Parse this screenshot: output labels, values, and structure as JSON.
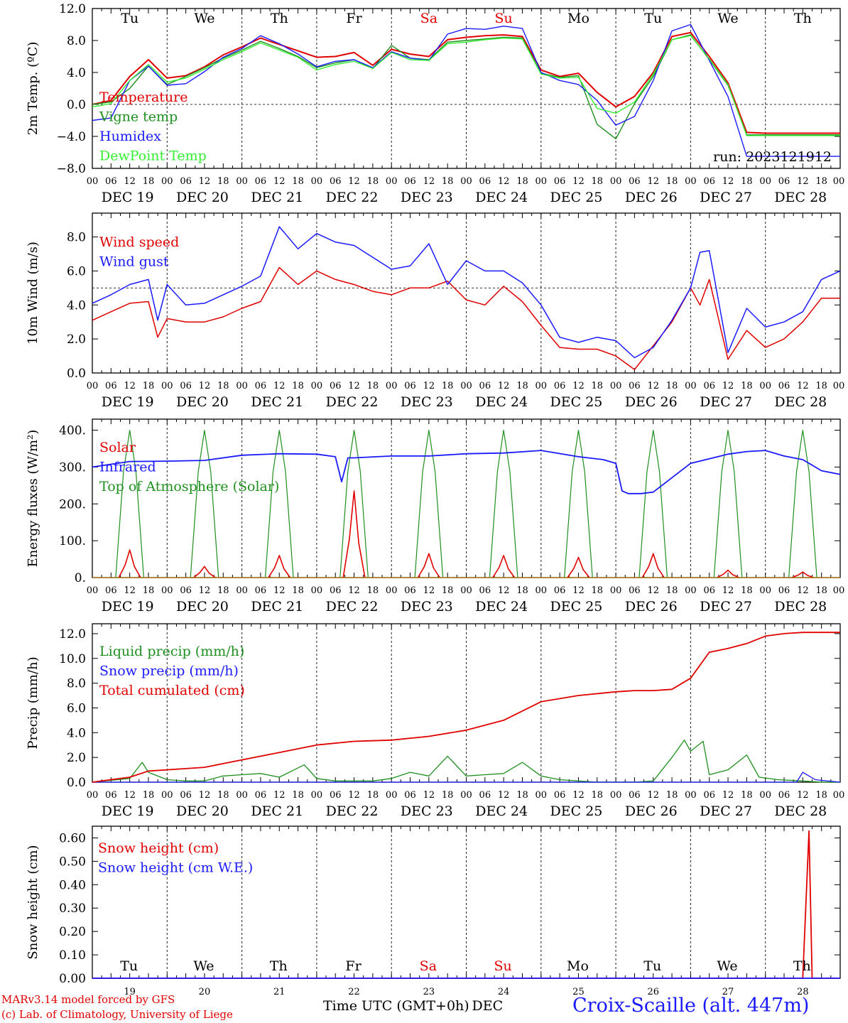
{
  "run_label": "run: 2023121912",
  "x_axis_label": "Time UTC (GMT+0h)",
  "x_axis_unit": "DEC",
  "station": "Croix-Scaille (alt. 447m)",
  "credits": [
    "MARv3.14 model forced by GFS",
    "(c) Lab. of Climatology, University of Liege"
  ],
  "hour_ticks": [
    "00",
    "06",
    "12",
    "18"
  ],
  "end_tick": "00",
  "date_labels": [
    "DEC 19",
    "DEC 20",
    "DEC 21",
    "DEC 22",
    "DEC 23",
    "DEC 24",
    "DEC 25",
    "DEC 26",
    "DEC 27",
    "DEC 28"
  ],
  "day_numbers": [
    "19",
    "20",
    "21",
    "22",
    "23",
    "24",
    "25",
    "26",
    "27",
    "28"
  ],
  "weekdays": [
    {
      "label": "Tu",
      "color": "#000000"
    },
    {
      "label": "We",
      "color": "#000000"
    },
    {
      "label": "Th",
      "color": "#000000"
    },
    {
      "label": "Fr",
      "color": "#000000"
    },
    {
      "label": "Sa",
      "color": "#e00000"
    },
    {
      "label": "Su",
      "color": "#e00000"
    },
    {
      "label": "Mo",
      "color": "#000000"
    },
    {
      "label": "Tu",
      "color": "#000000"
    },
    {
      "label": "We",
      "color": "#000000"
    },
    {
      "label": "Th",
      "color": "#000000"
    }
  ],
  "chart_data": [
    {
      "type": "line",
      "ylabel": "2m Temp. (ºC)",
      "yticks": [
        "12.0",
        "8.0",
        "4.0",
        "0.0",
        "−4.0",
        "−8.0"
      ],
      "ylim": [
        -8,
        12
      ],
      "x_unit": "hours since DEC 19 00 UTC",
      "reference_line": 0,
      "series": [
        {
          "name": "Temperature",
          "color": "#e00000",
          "x": [
            0,
            6,
            12,
            18,
            24,
            30,
            36,
            42,
            48,
            54,
            60,
            66,
            72,
            78,
            84,
            90,
            96,
            102,
            108,
            114,
            120,
            126,
            132,
            138,
            144,
            150,
            156,
            162,
            168,
            174,
            180,
            186,
            192,
            198,
            204,
            210,
            216,
            222,
            228,
            234,
            240
          ],
          "values": [
            0.0,
            0.5,
            3.5,
            5.6,
            3.3,
            3.6,
            4.7,
            6.2,
            7.2,
            8.3,
            7.5,
            6.7,
            5.9,
            6.0,
            6.5,
            4.9,
            6.9,
            6.3,
            6.0,
            8.1,
            8.4,
            8.6,
            8.7,
            8.5,
            4.3,
            3.5,
            3.9,
            1.5,
            -0.3,
            1.0,
            4.0,
            8.5,
            9.0,
            6.0,
            2.7,
            -3.5,
            -3.6,
            -3.6,
            -3.6,
            -3.6,
            -3.6
          ]
        },
        {
          "name": "Vigne temp",
          "color": "#1f8f1f",
          "x": [
            0,
            6,
            12,
            18,
            24,
            30,
            36,
            42,
            48,
            54,
            60,
            66,
            72,
            78,
            84,
            90,
            96,
            102,
            108,
            114,
            120,
            126,
            132,
            138,
            144,
            150,
            156,
            162,
            168,
            174,
            180,
            186,
            192,
            198,
            204,
            210,
            216,
            222,
            228,
            234,
            240
          ],
          "values": [
            0.0,
            0.3,
            2.0,
            4.8,
            2.5,
            3.5,
            4.6,
            5.8,
            6.8,
            7.9,
            7.0,
            6.0,
            4.6,
            5.2,
            5.6,
            4.5,
            7.4,
            5.8,
            5.6,
            7.8,
            8.0,
            8.2,
            8.4,
            8.3,
            3.9,
            3.4,
            3.6,
            -2.5,
            -4.3,
            0.1,
            3.5,
            8.1,
            8.7,
            5.6,
            2.4,
            -3.8,
            -3.8,
            -3.8,
            -3.8,
            -3.8,
            -3.8
          ]
        },
        {
          "name": "Humidex",
          "color": "#1a1aff",
          "x": [
            0,
            6,
            12,
            18,
            24,
            30,
            36,
            42,
            48,
            54,
            60,
            66,
            72,
            78,
            84,
            90,
            96,
            102,
            108,
            114,
            120,
            126,
            132,
            138,
            144,
            150,
            156,
            162,
            168,
            174,
            180,
            186,
            192,
            198,
            204,
            210,
            216,
            222,
            228,
            234,
            240
          ],
          "values": [
            -2.0,
            -1.7,
            3.0,
            4.8,
            2.4,
            2.6,
            4.1,
            5.9,
            7.0,
            8.6,
            7.6,
            6.3,
            4.7,
            5.4,
            5.6,
            4.6,
            6.6,
            5.8,
            5.5,
            8.8,
            9.5,
            9.4,
            9.8,
            9.5,
            4.0,
            3.0,
            2.5,
            0.5,
            -2.6,
            -1.5,
            3.0,
            9.2,
            10.0,
            5.5,
            1.0,
            -6.5,
            -6.5,
            -6.5,
            -6.5,
            -6.5,
            -6.5
          ]
        },
        {
          "name": "DewPoint Temp",
          "color": "#33ee33",
          "x": [
            0,
            6,
            12,
            18,
            24,
            30,
            36,
            42,
            48,
            54,
            60,
            66,
            72,
            78,
            84,
            90,
            96,
            102,
            108,
            114,
            120,
            126,
            132,
            138,
            144,
            150,
            156,
            162,
            168,
            174,
            180,
            186,
            192,
            198,
            204,
            210,
            216,
            222,
            228,
            234,
            240
          ],
          "values": [
            -0.3,
            0.1,
            3.0,
            5.0,
            2.8,
            3.3,
            4.4,
            5.6,
            6.6,
            7.7,
            6.8,
            5.9,
            4.3,
            5.0,
            5.4,
            4.5,
            6.5,
            5.6,
            5.5,
            7.6,
            7.8,
            8.1,
            8.3,
            8.2,
            3.8,
            3.3,
            3.4,
            -0.5,
            -1.1,
            0.3,
            3.8,
            8.1,
            8.6,
            5.7,
            2.5,
            -3.9,
            -3.9,
            -3.9,
            -3.9,
            -3.9,
            -3.9
          ]
        }
      ]
    },
    {
      "type": "line",
      "ylabel": "10m Wind (m/s)",
      "yticks": [
        "8.0",
        "6.0",
        "4.0",
        "2.0",
        "0.0"
      ],
      "ylim": [
        0,
        9.4
      ],
      "x_unit": "hours since DEC 19 00 UTC",
      "reference_line": 5,
      "series": [
        {
          "name": "Wind speed",
          "color": "#e00000",
          "x": [
            0,
            6,
            12,
            18,
            21,
            24,
            30,
            36,
            42,
            48,
            54,
            60,
            66,
            72,
            78,
            84,
            90,
            96,
            102,
            108,
            114,
            120,
            126,
            132,
            138,
            144,
            150,
            156,
            162,
            168,
            174,
            180,
            186,
            192,
            195,
            198,
            204,
            210,
            216,
            222,
            228,
            234,
            240
          ],
          "values": [
            3.1,
            3.6,
            4.1,
            4.2,
            2.1,
            3.2,
            3.0,
            3.0,
            3.3,
            3.8,
            4.2,
            6.2,
            5.2,
            6.0,
            5.5,
            5.2,
            4.8,
            4.6,
            5.0,
            5.0,
            5.4,
            4.3,
            4.0,
            5.1,
            4.2,
            2.8,
            1.5,
            1.4,
            1.4,
            1.0,
            0.2,
            1.6,
            3.0,
            5.0,
            4.0,
            5.5,
            0.8,
            2.5,
            1.5,
            2.0,
            3.0,
            4.4,
            4.4
          ]
        },
        {
          "name": "Wind gust",
          "color": "#1a1aff",
          "x": [
            0,
            6,
            12,
            18,
            21,
            24,
            30,
            36,
            42,
            48,
            54,
            60,
            66,
            72,
            78,
            84,
            90,
            96,
            102,
            108,
            114,
            120,
            126,
            132,
            138,
            144,
            150,
            156,
            162,
            168,
            174,
            180,
            186,
            192,
            195,
            198,
            204,
            210,
            216,
            222,
            228,
            234,
            240
          ],
          "values": [
            4.1,
            4.6,
            5.2,
            5.5,
            3.1,
            5.2,
            4.0,
            4.1,
            4.6,
            5.1,
            5.7,
            8.6,
            7.3,
            8.2,
            7.7,
            7.5,
            6.8,
            6.1,
            6.3,
            7.6,
            5.2,
            6.6,
            6.0,
            6.0,
            5.3,
            4.0,
            2.1,
            1.8,
            2.1,
            1.9,
            0.9,
            1.5,
            3.1,
            5.0,
            7.1,
            7.2,
            1.2,
            3.8,
            2.7,
            3.0,
            3.6,
            5.5,
            6.0
          ]
        }
      ]
    },
    {
      "type": "line",
      "ylabel": "Energy fluxes (W/m²)",
      "yticks": [
        "400.",
        "300.",
        "200.",
        "100.",
        "0."
      ],
      "ylim": [
        0,
        430
      ],
      "x_unit": "hours since DEC 19 00 UTC",
      "series": [
        {
          "name": "Solar",
          "color": "#e00000",
          "daily_peaks": [
            75,
            30,
            60,
            235,
            65,
            60,
            55,
            65,
            20,
            15
          ]
        },
        {
          "name": "Infrared",
          "color": "#1a1aff",
          "x": [
            0,
            12,
            24,
            36,
            48,
            60,
            72,
            78,
            80,
            82,
            84,
            96,
            108,
            120,
            132,
            144,
            156,
            164,
            168,
            170,
            172,
            176,
            180,
            192,
            204,
            210,
            216,
            222,
            228,
            234,
            240
          ],
          "values": [
            300,
            315,
            316,
            318,
            332,
            336,
            335,
            328,
            260,
            325,
            325,
            330,
            330,
            336,
            338,
            345,
            328,
            320,
            310,
            235,
            228,
            228,
            232,
            310,
            335,
            342,
            345,
            330,
            320,
            290,
            280
          ]
        },
        {
          "name": "Top of Atmosphere (Solar)",
          "color": "#1f8f1f",
          "daily_peak": 400
        }
      ]
    },
    {
      "type": "line",
      "ylabel": "Precip (mm/h)",
      "yticks": [
        "12.0",
        "10.0",
        "8.0",
        "6.0",
        "4.0",
        "2.0",
        "0.0"
      ],
      "ylim": [
        0,
        12.8
      ],
      "x_unit": "hours since DEC 19 00 UTC",
      "series": [
        {
          "name": "Liquid precip (mm/h)",
          "color": "#1f8f1f",
          "x": [
            0,
            12,
            16,
            18,
            24,
            30,
            36,
            42,
            48,
            54,
            60,
            64,
            68,
            72,
            78,
            84,
            90,
            96,
            102,
            108,
            114,
            120,
            126,
            132,
            138,
            144,
            150,
            156,
            162,
            168,
            174,
            180,
            186,
            190,
            192,
            196,
            198,
            204,
            210,
            214,
            220,
            228,
            234,
            240
          ],
          "values": [
            0.0,
            0.3,
            1.6,
            0.8,
            0.2,
            0.1,
            0.1,
            0.5,
            0.6,
            0.7,
            0.4,
            0.9,
            1.4,
            0.3,
            0.1,
            0.1,
            0.1,
            0.3,
            0.8,
            0.5,
            2.1,
            0.5,
            0.6,
            0.7,
            1.6,
            0.5,
            0.2,
            0.1,
            0.0,
            0.0,
            0.0,
            0.1,
            2.0,
            3.4,
            2.5,
            3.3,
            0.6,
            1.0,
            2.2,
            0.4,
            0.2,
            0.1,
            0.0,
            0.0
          ]
        },
        {
          "name": "Snow precip (mm/h)",
          "color": "#1a1aff",
          "x": [
            0,
            200,
            226,
            228,
            232,
            240
          ],
          "values": [
            0.0,
            0.0,
            0.0,
            0.8,
            0.2,
            0.0
          ]
        },
        {
          "name": "Total cumulated (cm)",
          "color": "#e00000",
          "x": [
            0,
            12,
            18,
            24,
            36,
            48,
            60,
            72,
            84,
            96,
            108,
            120,
            132,
            144,
            156,
            168,
            174,
            180,
            186,
            192,
            198,
            204,
            210,
            216,
            222,
            228,
            234,
            240
          ],
          "values": [
            0.0,
            0.4,
            0.9,
            1.0,
            1.2,
            1.8,
            2.4,
            3.0,
            3.3,
            3.4,
            3.7,
            4.2,
            5.0,
            6.5,
            7.0,
            7.3,
            7.4,
            7.4,
            7.5,
            8.4,
            10.5,
            10.8,
            11.2,
            11.8,
            12.0,
            12.1,
            12.1,
            12.1
          ]
        }
      ]
    },
    {
      "type": "line",
      "ylabel": "Snow height (cm)",
      "yticks": [
        "0.60",
        "0.50",
        "0.40",
        "0.30",
        "0.20",
        "0.10",
        "0.00"
      ],
      "ylim": [
        0,
        0.65
      ],
      "x_unit": "hours since DEC 19 00 UTC",
      "series": [
        {
          "name": "Snow height (cm)",
          "color": "#e00000",
          "x": [
            0,
            228,
            230,
            231,
            240
          ],
          "values": [
            0.0,
            0.0,
            0.63,
            0.0,
            0.0
          ]
        },
        {
          "name": "Snow height (cm W.E.)",
          "color": "#1a1aff",
          "x": [
            0,
            240
          ],
          "values": [
            0.0,
            0.0
          ]
        }
      ]
    }
  ]
}
